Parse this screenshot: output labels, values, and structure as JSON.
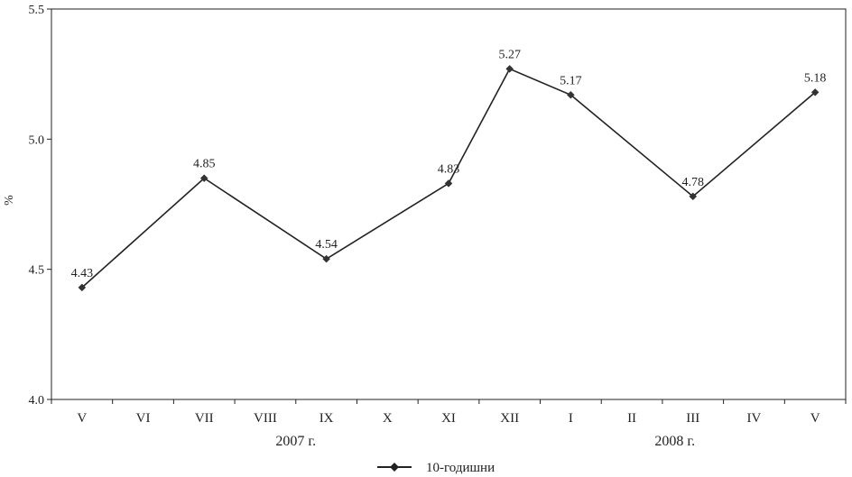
{
  "chart_data": {
    "type": "line",
    "categories": [
      "V",
      "VI",
      "VII",
      "VIII",
      "IX",
      "X",
      "XI",
      "XII",
      "I",
      "II",
      "III",
      "IV",
      "V"
    ],
    "series": [
      {
        "name": "10-годишни",
        "values": [
          4.43,
          null,
          4.85,
          null,
          4.54,
          null,
          4.83,
          5.27,
          5.17,
          null,
          4.78,
          null,
          5.18
        ]
      }
    ],
    "data_labels": [
      "4.43",
      null,
      "4.85",
      null,
      "4.54",
      null,
      "4.83",
      "5.27",
      "5.17",
      null,
      "4.78",
      null,
      "5.18"
    ],
    "ylabel": "%",
    "ylim": [
      4.0,
      5.5
    ],
    "yticks": [
      "4.0",
      "4.5",
      "5.0",
      "5.5"
    ],
    "group_labels": [
      "2007 г.",
      "2008 г."
    ],
    "grid": false,
    "legend_position": "bottom",
    "line_color": "#222222",
    "marker": "diamond"
  }
}
